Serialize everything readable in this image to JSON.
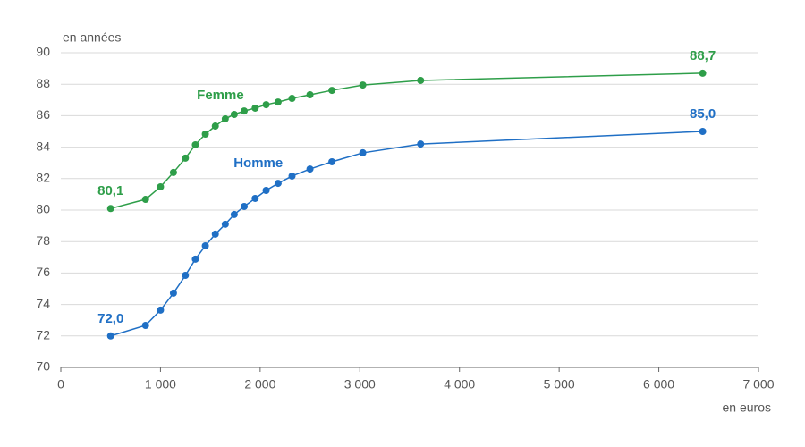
{
  "chart_data": {
    "type": "line",
    "y_label": "en années",
    "x_label": "en euros",
    "xlim": [
      0,
      7000
    ],
    "xticks": [
      0,
      {
        "value": 1000,
        "label": "1 000"
      },
      {
        "value": 2000,
        "label": "2 000"
      },
      {
        "value": 3000,
        "label": "3 000"
      },
      {
        "value": 4000,
        "label": "4 000"
      },
      {
        "value": 5000,
        "label": "5 000"
      },
      {
        "value": 6000,
        "label": "6 000"
      },
      {
        "value": 7000,
        "label": "7 000"
      }
    ],
    "ylim": [
      70,
      90
    ],
    "yticks": [
      70,
      72,
      74,
      76,
      78,
      80,
      82,
      84,
      86,
      88,
      90
    ],
    "grid": true,
    "series": [
      {
        "name": "Femme",
        "color": "#2e9e49",
        "x": [
          500,
          850,
          1000,
          1130,
          1250,
          1350,
          1450,
          1550,
          1650,
          1740,
          1840,
          1950,
          2060,
          2180,
          2320,
          2500,
          2720,
          3030,
          3610,
          6440
        ],
        "values": [
          80.1,
          80.68,
          81.48,
          82.39,
          83.3,
          84.15,
          84.83,
          85.34,
          85.8,
          86.08,
          86.3,
          86.48,
          86.7,
          86.87,
          87.1,
          87.33,
          87.61,
          87.95,
          88.24,
          88.7
        ],
        "value_labels": [
          "80,1",
          null,
          null,
          null,
          null,
          null,
          null,
          null,
          null,
          null,
          null,
          null,
          null,
          null,
          null,
          null,
          null,
          null,
          null,
          "88,7"
        ]
      },
      {
        "name": "Homme",
        "color": "#1f6fc5",
        "x": [
          500,
          850,
          1000,
          1130,
          1250,
          1350,
          1450,
          1550,
          1650,
          1740,
          1840,
          1950,
          2060,
          2180,
          2320,
          2500,
          2720,
          3030,
          3610,
          6440
        ],
        "values": [
          72.0,
          72.67,
          73.64,
          74.72,
          75.85,
          76.88,
          77.73,
          78.47,
          79.1,
          79.72,
          80.23,
          80.74,
          81.25,
          81.7,
          82.16,
          82.61,
          83.07,
          83.64,
          84.2,
          85.0
        ],
        "value_labels": [
          "72,0",
          null,
          null,
          null,
          null,
          null,
          null,
          null,
          null,
          null,
          null,
          null,
          null,
          null,
          null,
          null,
          null,
          null,
          null,
          "85,0"
        ]
      }
    ]
  }
}
